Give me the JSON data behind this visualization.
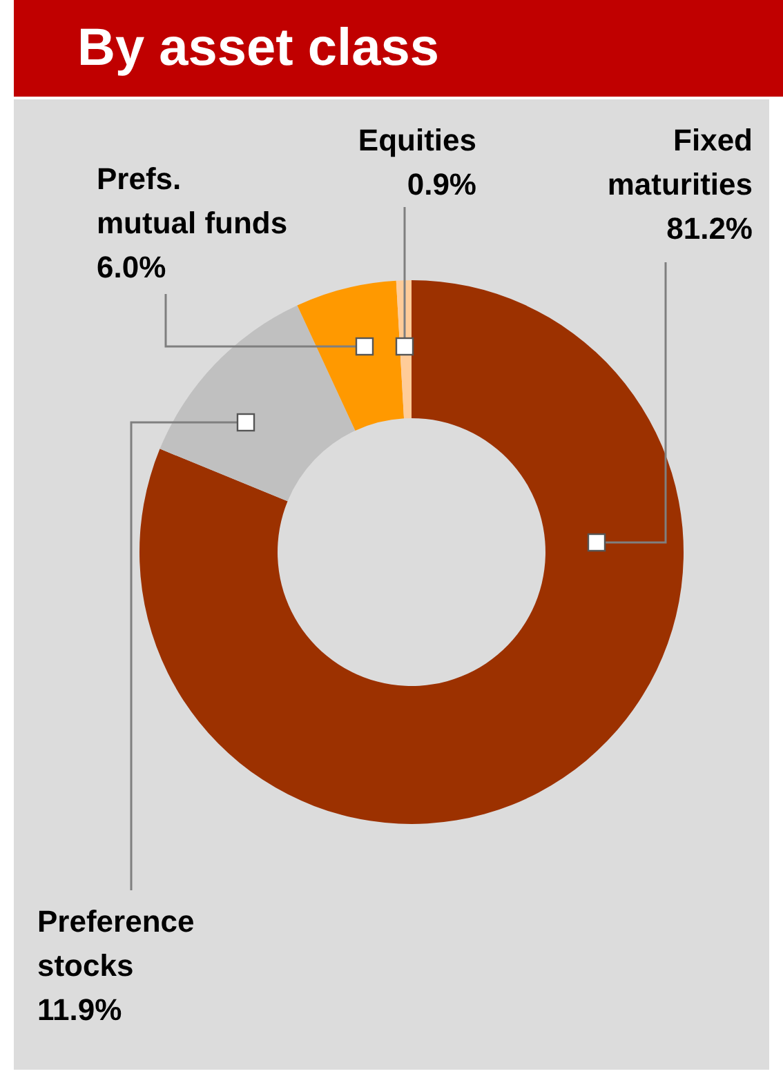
{
  "chart_data": {
    "type": "donut",
    "title": "By asset class",
    "categories": [
      "Fixed\nmaturities",
      "Preference\nstocks",
      "Prefs.\nmutual funds",
      "Equities"
    ],
    "values": [
      81.2,
      11.9,
      6.0,
      0.9
    ],
    "colors": [
      "#9c3100",
      "#c0c0c0",
      "#ff9900",
      "#ffcc99"
    ],
    "value_labels": [
      "81.2%",
      "11.9%",
      "6.0%",
      "0.9%"
    ]
  }
}
